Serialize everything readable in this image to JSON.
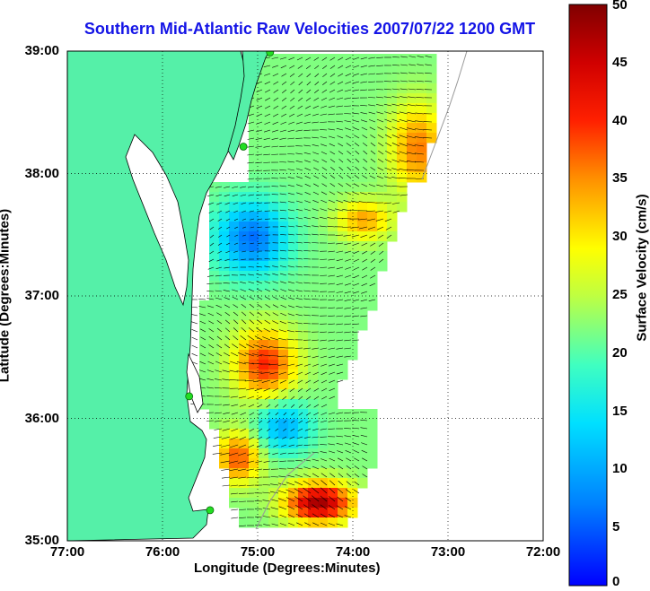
{
  "title": "Southern Mid-Atlantic Raw Velocities 2007/07/22 1200 GMT",
  "x_axis": {
    "label": "Longitude (Degrees:Minutes)",
    "ticks": [
      "77:00",
      "76:00",
      "75:00",
      "74:00",
      "73:00",
      "72:00"
    ]
  },
  "y_axis": {
    "label": "Latitude (Degrees:Minutes)",
    "ticks": [
      "39:00",
      "38:00",
      "37:00",
      "36:00",
      "35:00"
    ]
  },
  "colorbar": {
    "label": "Surface Velocity (cm/s)",
    "ticks": [
      "50",
      "45",
      "40",
      "35",
      "30",
      "25",
      "20",
      "15",
      "10",
      "5",
      "0"
    ],
    "min": 0,
    "max": 50
  },
  "colors": {
    "land": "#55f0a8",
    "title": "#1414e6",
    "station": "#22dd22"
  },
  "map_extent": {
    "lon_min": -77,
    "lon_max": -72,
    "lat_min": 35,
    "lat_max": 39
  },
  "grid": "dotted",
  "stations": [
    {
      "lon": -74.87,
      "lat": 38.99
    },
    {
      "lon": -75.15,
      "lat": 38.22
    },
    {
      "lon": -75.72,
      "lat": 36.18
    },
    {
      "lon": -75.5,
      "lat": 35.25
    }
  ]
}
